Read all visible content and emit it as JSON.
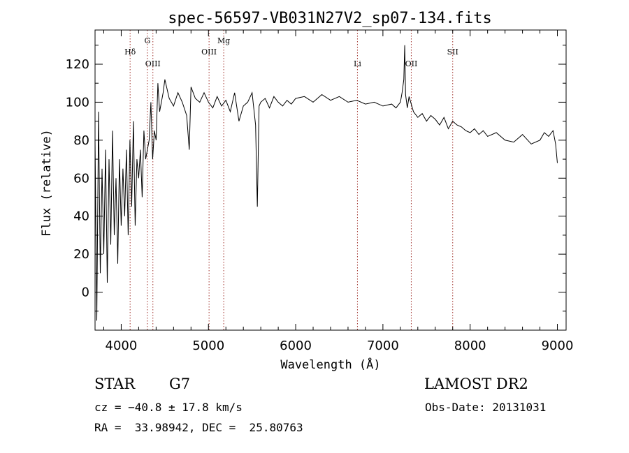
{
  "chart_data": {
    "type": "line",
    "title": "spec-56597-VB031N27V2_sp07-134.fits",
    "xlabel": "Wavelength (Å)",
    "ylabel": "Flux (relative)",
    "xlim": [
      3700,
      9100
    ],
    "ylim": [
      -20,
      138
    ],
    "x_ticks": [
      4000,
      5000,
      6000,
      7000,
      8000,
      9000
    ],
    "y_ticks": [
      0,
      20,
      40,
      60,
      80,
      100,
      120
    ],
    "grid": false,
    "spectral_lines": [
      {
        "label": "Hδ",
        "x": 4102,
        "row": "low"
      },
      {
        "label": "G",
        "x": 4300,
        "row": "high"
      },
      {
        "label": "OIII",
        "x": 4363,
        "row": "lower"
      },
      {
        "label": "OIII",
        "x": 5007,
        "row": "low"
      },
      {
        "label": "Mg",
        "x": 5175,
        "row": "high"
      },
      {
        "label": "Li",
        "x": 6708,
        "row": "mid"
      },
      {
        "label": "OII",
        "x": 7325,
        "row": "mid"
      },
      {
        "label": "SII",
        "x": 7800,
        "row": "low"
      }
    ],
    "series": [
      {
        "color": "#000000",
        "x": [
          3700,
          3720,
          3740,
          3760,
          3780,
          3800,
          3820,
          3840,
          3860,
          3880,
          3900,
          3920,
          3940,
          3960,
          3980,
          4000,
          4020,
          4040,
          4060,
          4080,
          4100,
          4120,
          4140,
          4160,
          4180,
          4200,
          4220,
          4240,
          4260,
          4280,
          4300,
          4320,
          4340,
          4360,
          4380,
          4400,
          4420,
          4440,
          4460,
          4480,
          4500,
          4550,
          4600,
          4650,
          4700,
          4750,
          4780,
          4800,
          4850,
          4900,
          4950,
          5000,
          5050,
          5100,
          5150,
          5200,
          5250,
          5300,
          5350,
          5400,
          5450,
          5500,
          5540,
          5560,
          5580,
          5600,
          5650,
          5700,
          5750,
          5800,
          5850,
          5900,
          5950,
          6000,
          6100,
          6200,
          6300,
          6400,
          6500,
          6600,
          6700,
          6800,
          6900,
          7000,
          7100,
          7150,
          7200,
          7220,
          7240,
          7250,
          7260,
          7280,
          7300,
          7350,
          7400,
          7450,
          7500,
          7550,
          7600,
          7650,
          7700,
          7750,
          7800,
          7850,
          7900,
          7950,
          8000,
          8050,
          8100,
          8150,
          8200,
          8300,
          8400,
          8500,
          8600,
          8700,
          8800,
          8850,
          8900,
          8950,
          8980,
          9000
        ],
        "y": [
          80,
          -15,
          95,
          10,
          65,
          20,
          75,
          5,
          70,
          25,
          85,
          30,
          60,
          15,
          70,
          35,
          65,
          40,
          75,
          30,
          80,
          45,
          90,
          35,
          70,
          60,
          75,
          50,
          85,
          70,
          75,
          80,
          100,
          70,
          85,
          80,
          110,
          95,
          100,
          105,
          112,
          102,
          98,
          105,
          100,
          93,
          75,
          108,
          102,
          100,
          105,
          100,
          97,
          103,
          98,
          101,
          95,
          105,
          90,
          98,
          100,
          105,
          88,
          45,
          98,
          100,
          102,
          97,
          103,
          100,
          98,
          101,
          99,
          102,
          103,
          100,
          104,
          101,
          103,
          100,
          101,
          99,
          100,
          98,
          99,
          97,
          100,
          105,
          112,
          130,
          104,
          97,
          103,
          95,
          92,
          94,
          90,
          93,
          91,
          88,
          92,
          86,
          90,
          88,
          87,
          85,
          84,
          86,
          83,
          85,
          82,
          84,
          80,
          79,
          83,
          78,
          80,
          84,
          82,
          85,
          78,
          68
        ]
      }
    ]
  },
  "info": {
    "class": "STAR",
    "subclass": "G7",
    "survey": "LAMOST DR2",
    "cz": "cz = −40.8 ± 17.8 km/s",
    "obs_date": "Obs-Date: 20131031",
    "radec": "RA =  33.98942, DEC =  25.80763"
  }
}
